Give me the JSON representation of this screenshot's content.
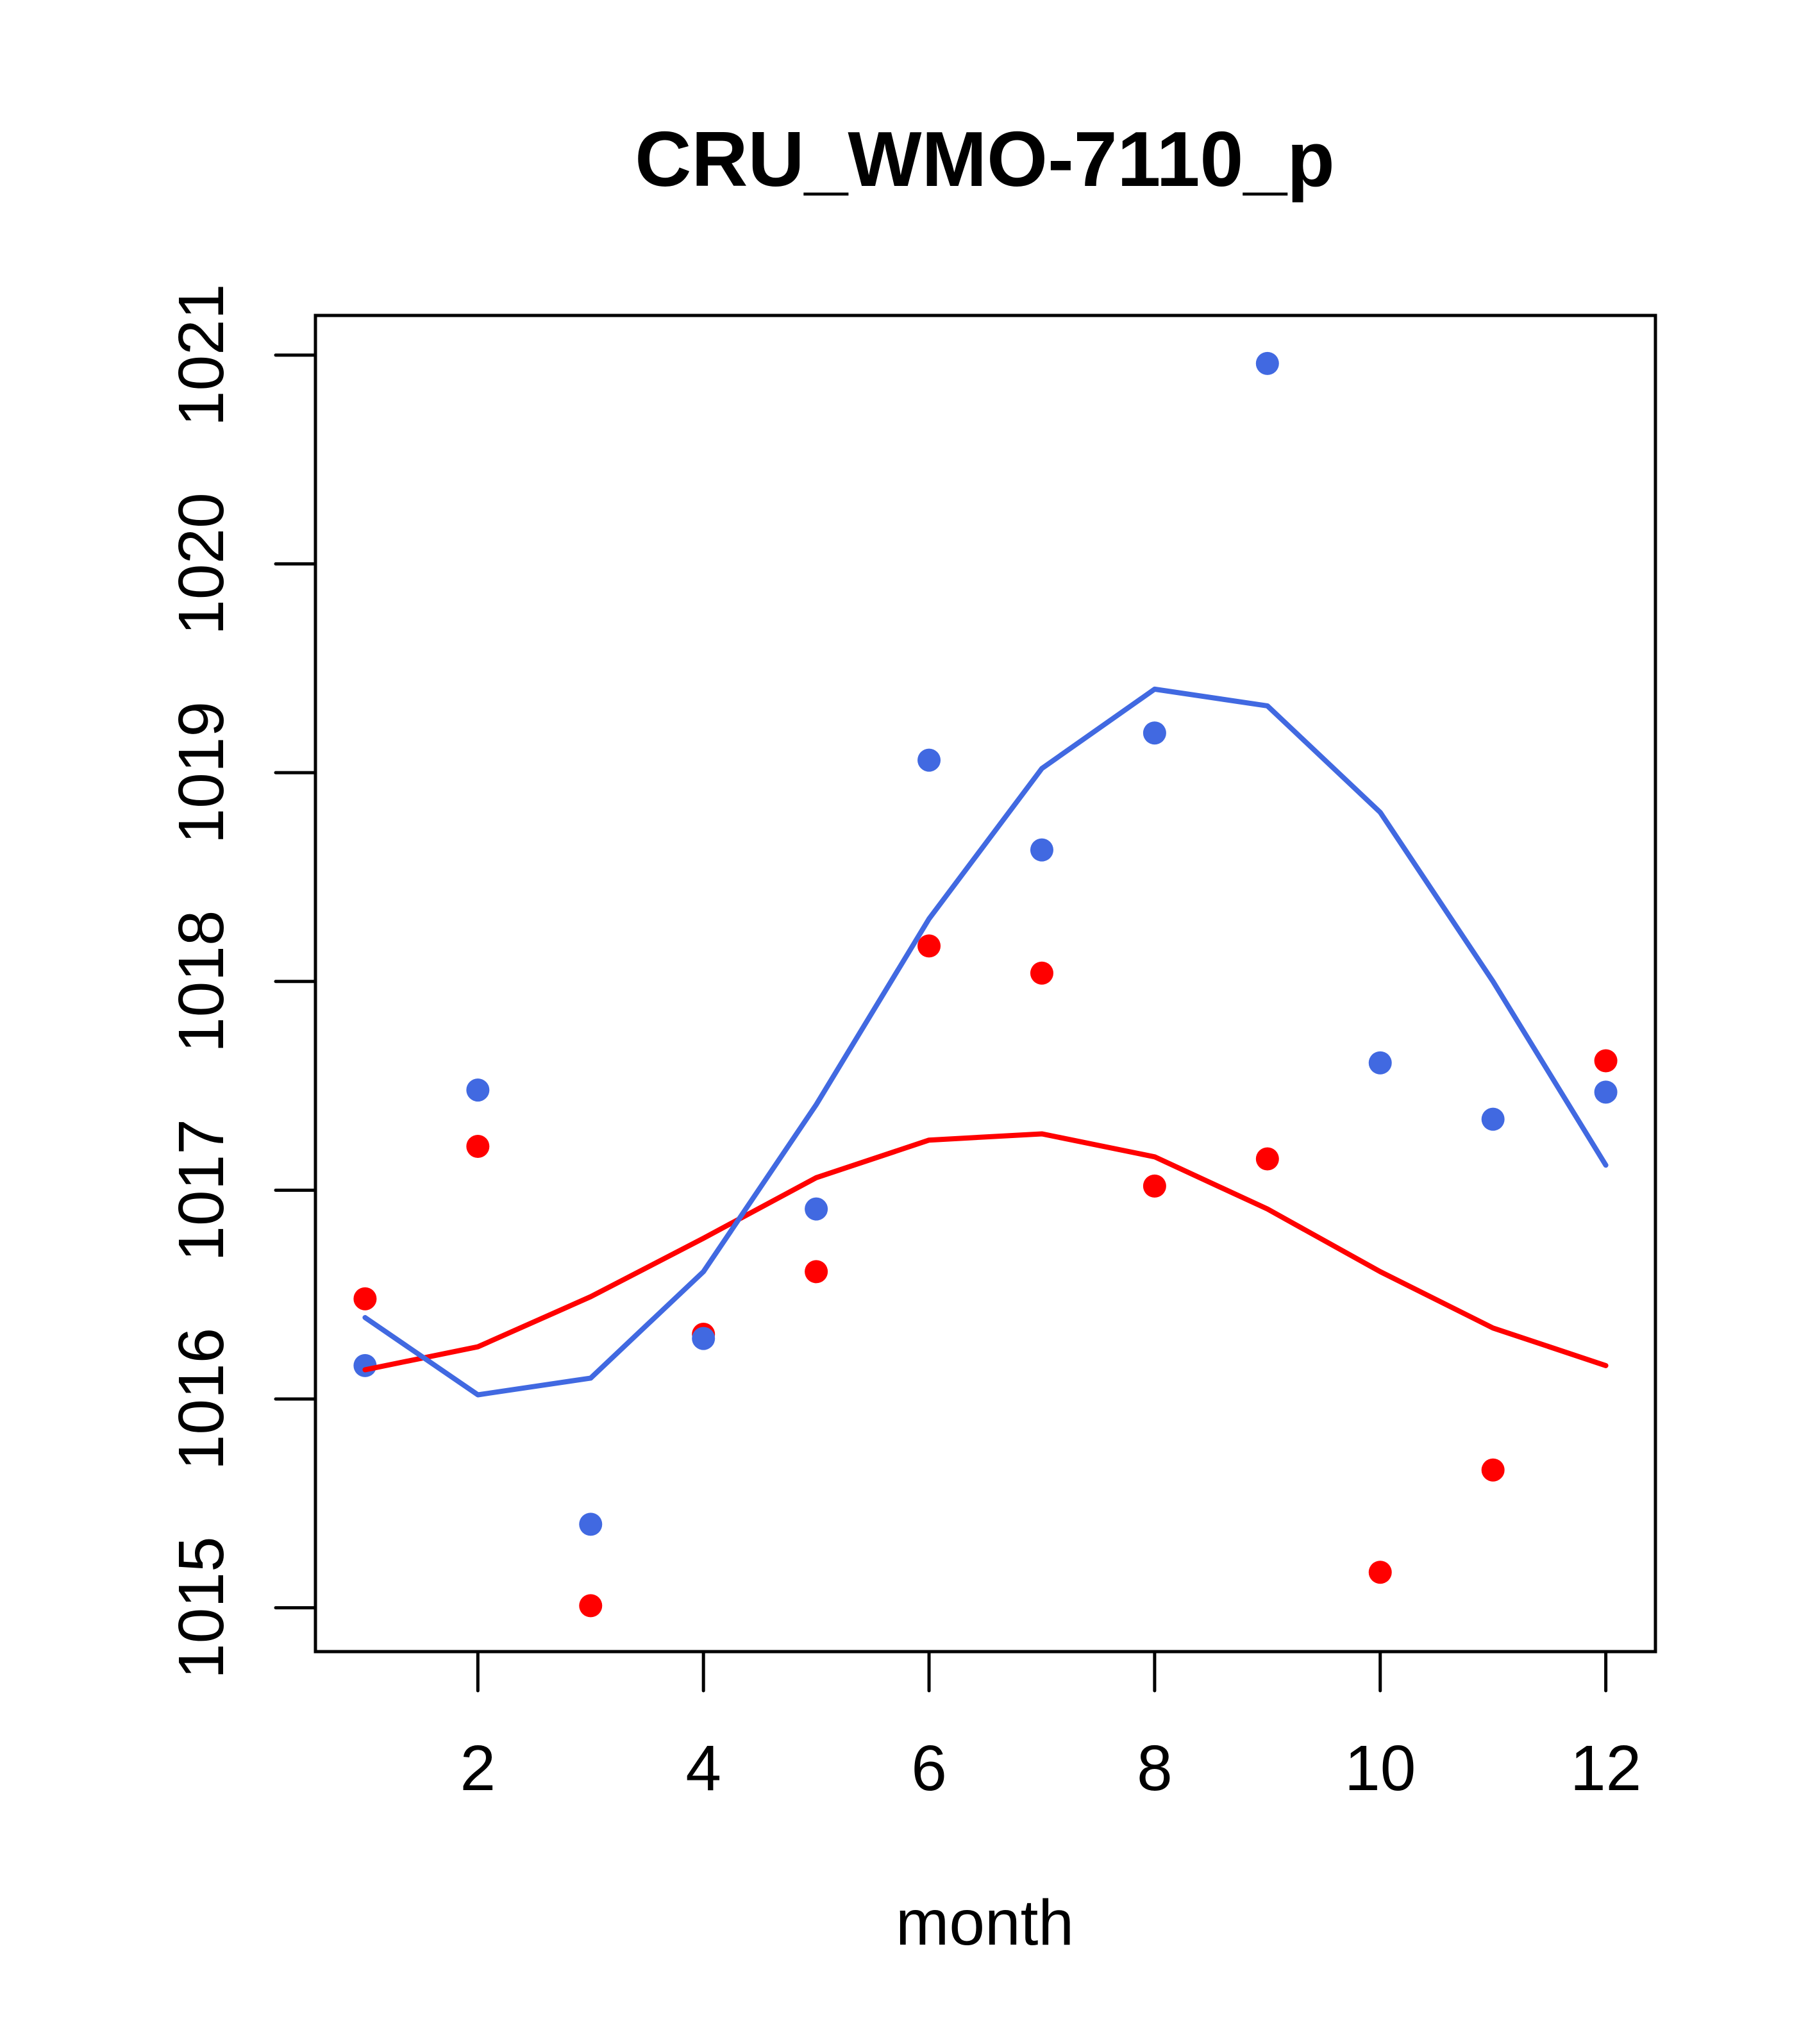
{
  "chart_data": {
    "type": "scatter",
    "title": "CRU_WMO-7110_p",
    "xlabel": "month",
    "ylabel": "",
    "xlim": [
      0.56,
      12.44
    ],
    "ylim": [
      1014.79,
      1021.19
    ],
    "x_ticks": [
      2,
      4,
      6,
      8,
      10,
      12
    ],
    "x_tick_labels": [
      "2",
      "4",
      "6",
      "8",
      "10",
      "12"
    ],
    "y_ticks": [
      1015,
      1016,
      1017,
      1018,
      1019,
      1020,
      1021
    ],
    "y_tick_labels": [
      "1015",
      "1016",
      "1017",
      "1018",
      "1019",
      "1020",
      "1021"
    ],
    "grid": false,
    "x": [
      1,
      2,
      3,
      4,
      5,
      6,
      7,
      8,
      9,
      10,
      11,
      12
    ],
    "series": [
      {
        "name": "red points",
        "kind": "points",
        "color": "#FF0000",
        "values": [
          1016.48,
          1017.21,
          1015.01,
          1016.31,
          1016.61,
          1018.17,
          1018.04,
          1017.02,
          1017.15,
          1015.17,
          1015.66,
          1017.62
        ]
      },
      {
        "name": "blue points",
        "kind": "points",
        "color": "#4169E1",
        "values": [
          1016.16,
          1017.48,
          1015.4,
          1016.29,
          1016.91,
          1019.06,
          1018.63,
          1019.19,
          1020.96,
          1017.61,
          1017.34,
          1017.47
        ]
      },
      {
        "name": "red line",
        "kind": "line",
        "color": "#FF0000",
        "values": [
          1016.14,
          1016.25,
          1016.49,
          1016.77,
          1017.06,
          1017.24,
          1017.27,
          1017.16,
          1016.91,
          1016.61,
          1016.34,
          1016.16
        ]
      },
      {
        "name": "blue line",
        "kind": "line",
        "color": "#4169E1",
        "values": [
          1016.39,
          1016.02,
          1016.1,
          1016.61,
          1017.41,
          1018.3,
          1019.02,
          1019.4,
          1019.32,
          1018.81,
          1018.0,
          1017.12
        ]
      }
    ]
  }
}
